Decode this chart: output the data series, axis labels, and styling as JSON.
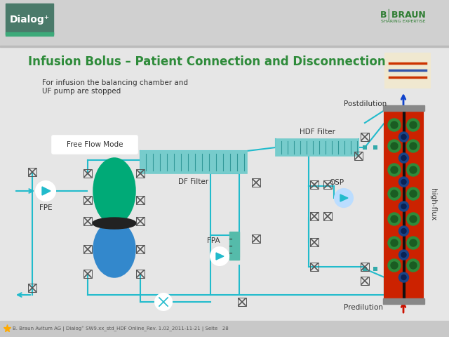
{
  "bg_color": "#e6e6e6",
  "header_bg": "#d0d0d0",
  "content_bg": "#e6e6e6",
  "footer_bg": "#c8c8c8",
  "title": "Infusion Bolus – Patient Connection and Disconnection",
  "title_color": "#2e8b3a",
  "subtitle_line1": "For infusion the balancing chamber and",
  "subtitle_line2": "UF pump are stopped",
  "subtitle_color": "#333333",
  "dialog_bg": "#4a7a6a",
  "dialog_green": "#3daa7a",
  "bbraun_color": "#2e7d32",
  "flow_mode_label": "Free Flow Mode",
  "df_filter_label": "DF Filter",
  "hdf_filter_label": "HDF Filter",
  "osp_label": "OSP",
  "fpe_label": "FPE",
  "fpa_label": "FPA",
  "postdilution_label": "Postdilution",
  "predilution_label": "Predilution",
  "high_flux_label": "high-flux",
  "tube_color": "#22bbcc",
  "filter_color": "#77cccc",
  "filter_line_color": "#339999",
  "dialyzer_red": "#cc2200",
  "green_circle": "#2e8b3a",
  "green_circle_dark": "#1a5c22",
  "blue_circle": "#1a4488",
  "postdil_arrow_color": "#1144cc",
  "predil_arrow_color": "#cc1100",
  "footer_text": "B. Braun Avitum AG | Dialog⁺ SW9.xx_std_HDF Online_Rev. 1.02_2011-11-21 | Seite   28"
}
